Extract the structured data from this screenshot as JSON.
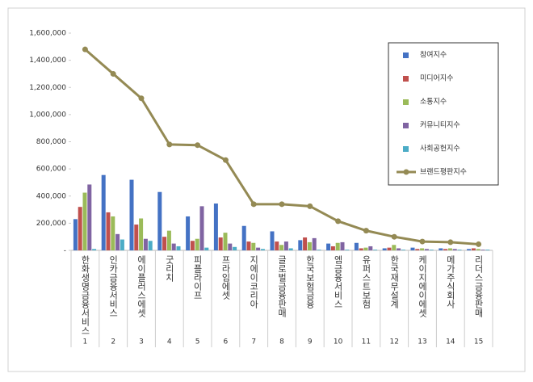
{
  "chart_data": {
    "type": "bar",
    "categories": [
      "한화생명금융서비스",
      "인카금융서비스",
      "에이플러스에셋",
      "굿리치",
      "피플라이프",
      "프라임에셋",
      "지에이코리아",
      "글로벌금융판매",
      "한국보험금융",
      "엠금융서비스",
      "유퍼스트보험",
      "한국재무설계",
      "케이지에이에셋",
      "메가주식회사",
      "리더스금융판매"
    ],
    "ranks": [
      "1",
      "2",
      "3",
      "4",
      "5",
      "6",
      "7",
      "8",
      "9",
      "10",
      "11",
      "12",
      "13",
      "14",
      "15"
    ],
    "series": [
      {
        "name": "참여지수",
        "color": "#4472c4",
        "values": [
          230000,
          555000,
          520000,
          430000,
          250000,
          345000,
          180000,
          140000,
          75000,
          50000,
          55000,
          15000,
          20000,
          15000,
          10000
        ]
      },
      {
        "name": "미디어지수",
        "color": "#c0504d",
        "values": [
          320000,
          280000,
          190000,
          100000,
          70000,
          95000,
          65000,
          65000,
          95000,
          30000,
          15000,
          20000,
          10000,
          10000,
          15000
        ]
      },
      {
        "name": "소통지수",
        "color": "#9bbb59",
        "values": [
          425000,
          250000,
          235000,
          145000,
          85000,
          130000,
          55000,
          40000,
          60000,
          55000,
          20000,
          40000,
          15000,
          15000,
          10000
        ]
      },
      {
        "name": "커뮤니티지수",
        "color": "#8064a2",
        "values": [
          485000,
          120000,
          85000,
          50000,
          325000,
          50000,
          20000,
          65000,
          90000,
          60000,
          30000,
          15000,
          10000,
          10000,
          5000
        ]
      },
      {
        "name": "사회공헌지수",
        "color": "#4bacc6",
        "values": [
          10000,
          80000,
          70000,
          30000,
          20000,
          25000,
          10000,
          15000,
          5000,
          5000,
          5000,
          5000,
          5000,
          5000,
          5000
        ]
      },
      {
        "name": "브랜드평판지수",
        "color": "#948a54",
        "type": "line",
        "values": [
          1480000,
          1300000,
          1120000,
          780000,
          775000,
          665000,
          340000,
          340000,
          325000,
          215000,
          145000,
          100000,
          65000,
          60000,
          45000
        ]
      }
    ],
    "ylim": [
      0,
      1600000
    ],
    "yticks": [
      {
        "value": 0,
        "label": "-"
      },
      {
        "value": 200000,
        "label": "200,000"
      },
      {
        "value": 400000,
        "label": "400,000"
      },
      {
        "value": 600000,
        "label": "600,000"
      },
      {
        "value": 800000,
        "label": "800,000"
      },
      {
        "value": 1000000,
        "label": "1,000,000"
      },
      {
        "value": 1200000,
        "label": "1,200,000"
      },
      {
        "value": 1400000,
        "label": "1,400,000"
      },
      {
        "value": 1600000,
        "label": "1,600,000"
      }
    ],
    "legend": "top-right"
  }
}
